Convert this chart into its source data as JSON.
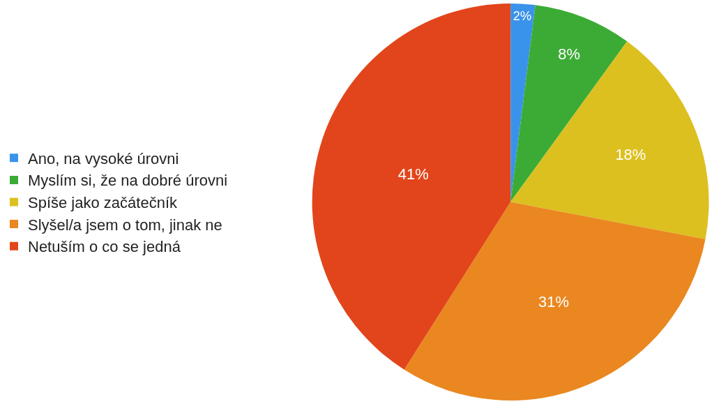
{
  "chart_data": {
    "type": "pie",
    "categories": [
      "Ano, na vysoké úrovni",
      "Myslím si, že na dobré úrovni",
      "Spíše jako začátečník",
      "Slyšel/a jsem o tom, jinak ne",
      "Netuším o co se jedná"
    ],
    "values": [
      2,
      8,
      18,
      31,
      41
    ],
    "colors": [
      "#3a93ea",
      "#3cab36",
      "#dcc020",
      "#ea8720",
      "#e2451b"
    ],
    "value_labels": [
      "2%",
      "8%",
      "18%",
      "31%",
      "41%"
    ],
    "legend": "left"
  }
}
